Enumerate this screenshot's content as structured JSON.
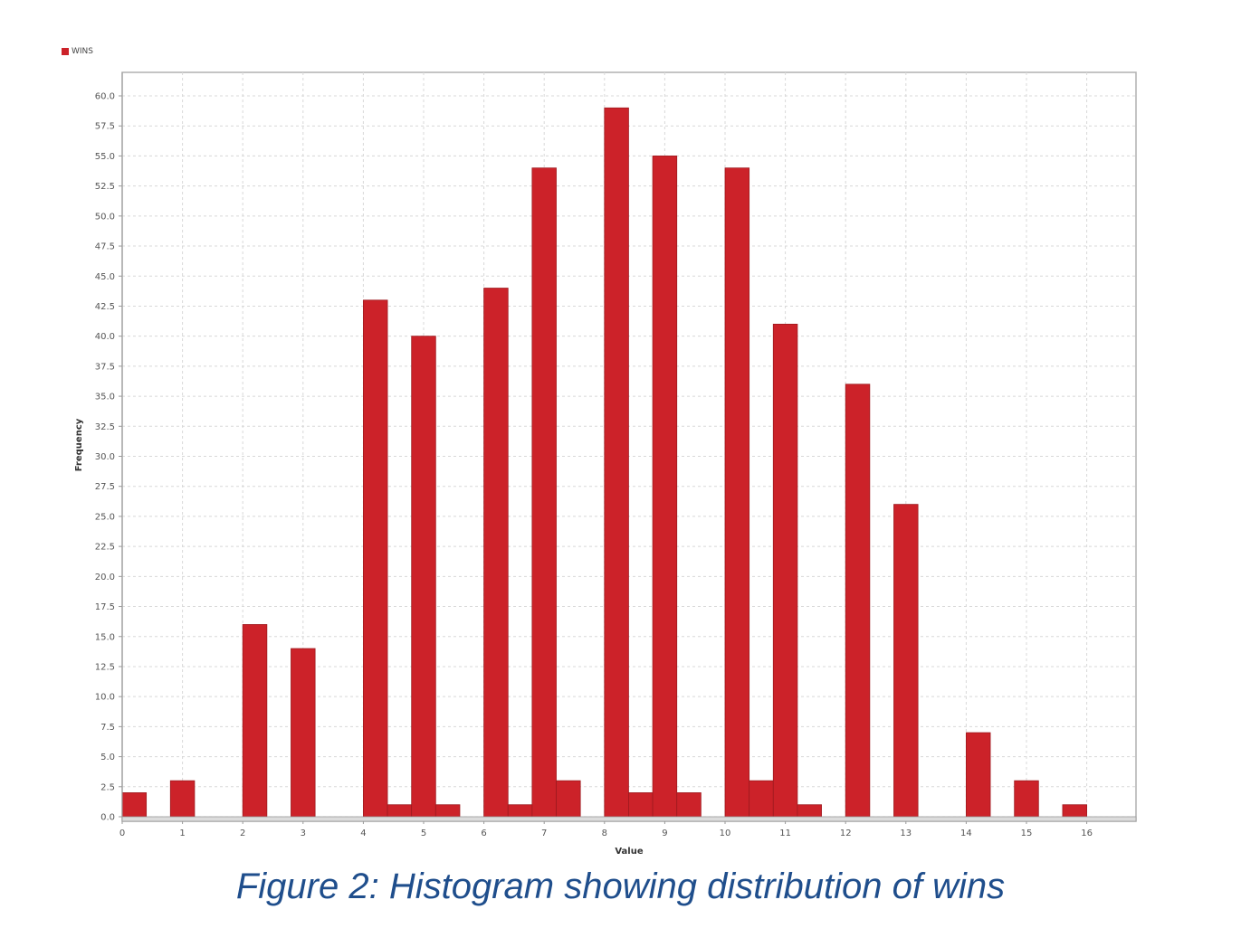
{
  "caption": "Figure 2: Histogram showing distribution of wins",
  "colors": {
    "bar": "#cc2229",
    "bar_edge": "#9e1a1f",
    "grid": "#d8d8d8",
    "axis": "#999999",
    "caption": "#1f4e8c"
  },
  "chart_data": {
    "type": "bar",
    "xlabel": "Value",
    "ylabel": "Frequency",
    "legend": {
      "position": "top-left",
      "entries": [
        "WINS"
      ]
    },
    "series": [
      {
        "name": "WINS",
        "bins": [
          {
            "x": 0.0,
            "value": 2
          },
          {
            "x": 0.8,
            "value": 3
          },
          {
            "x": 2.0,
            "value": 16
          },
          {
            "x": 2.8,
            "value": 14
          },
          {
            "x": 4.0,
            "value": 43
          },
          {
            "x": 4.4,
            "value": 1
          },
          {
            "x": 4.8,
            "value": 40
          },
          {
            "x": 5.2,
            "value": 1
          },
          {
            "x": 6.0,
            "value": 44
          },
          {
            "x": 6.4,
            "value": 1
          },
          {
            "x": 6.8,
            "value": 54
          },
          {
            "x": 7.2,
            "value": 3
          },
          {
            "x": 8.0,
            "value": 59
          },
          {
            "x": 8.4,
            "value": 2
          },
          {
            "x": 8.8,
            "value": 55
          },
          {
            "x": 9.2,
            "value": 2
          },
          {
            "x": 10.0,
            "value": 54
          },
          {
            "x": 10.4,
            "value": 3
          },
          {
            "x": 10.8,
            "value": 41
          },
          {
            "x": 11.2,
            "value": 1
          },
          {
            "x": 12.0,
            "value": 36
          },
          {
            "x": 12.8,
            "value": 26
          },
          {
            "x": 14.0,
            "value": 7
          },
          {
            "x": 14.8,
            "value": 3
          },
          {
            "x": 15.6,
            "value": 1
          }
        ]
      }
    ],
    "bin_width": 0.4,
    "xlim": [
      0,
      16.8
    ],
    "ylim": [
      0,
      60
    ],
    "x_ticks": [
      "0",
      "1",
      "2",
      "3",
      "4",
      "5",
      "6",
      "7",
      "8",
      "9",
      "10",
      "11",
      "12",
      "13",
      "14",
      "15",
      "16"
    ],
    "x_tick_values": [
      0,
      1,
      2,
      3,
      4,
      5,
      6,
      7,
      8,
      9,
      10,
      11,
      12,
      13,
      14,
      15,
      16
    ],
    "y_ticks": [
      "0.0",
      "2.5",
      "5.0",
      "7.5",
      "10.0",
      "12.5",
      "15.0",
      "17.5",
      "20.0",
      "22.5",
      "25.0",
      "27.5",
      "30.0",
      "32.5",
      "35.0",
      "37.5",
      "40.0",
      "42.5",
      "45.0",
      "47.5",
      "50.0",
      "52.5",
      "55.0",
      "57.5",
      "60.0"
    ],
    "y_tick_values": [
      0,
      2.5,
      5,
      7.5,
      10,
      12.5,
      15,
      17.5,
      20,
      22.5,
      25,
      27.5,
      30,
      32.5,
      35,
      37.5,
      40,
      42.5,
      45,
      47.5,
      50,
      52.5,
      55,
      57.5,
      60
    ],
    "grid": true
  }
}
